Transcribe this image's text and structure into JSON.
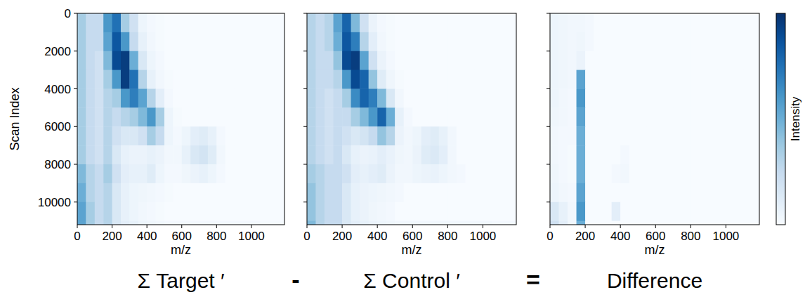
{
  "chart_data": [
    {
      "type": "heatmap",
      "title": "Σ Target ′",
      "x_label": "m/z",
      "y_label": "Scan Index",
      "xlim": [
        0,
        1190
      ],
      "ylim": [
        0,
        11200
      ],
      "xticks": [
        0,
        200,
        400,
        600,
        800,
        1000
      ],
      "yticks": [
        0,
        2000,
        4000,
        6000,
        8000,
        10000
      ],
      "x_bins": [
        0,
        50,
        100,
        150,
        200,
        250,
        300,
        350,
        400,
        450,
        500,
        550,
        600,
        650,
        700,
        750,
        800,
        850,
        900,
        950,
        1000,
        1050,
        1100,
        1150,
        1190
      ],
      "y_bins": [
        0,
        1000,
        2000,
        3000,
        4000,
        5000,
        6000,
        7000,
        8000,
        9000,
        10000,
        11000,
        11200
      ],
      "cells": [
        [
          0.35,
          0.25,
          0.25,
          0.6,
          0.75,
          0.35,
          0.2,
          0.05,
          0.02,
          0.01,
          0,
          0,
          0,
          0,
          0,
          0,
          0,
          0,
          0,
          0,
          0,
          0,
          0,
          0
        ],
        [
          0.35,
          0.25,
          0.25,
          0.55,
          0.85,
          0.6,
          0.25,
          0.08,
          0.03,
          0.01,
          0,
          0,
          0,
          0,
          0,
          0,
          0,
          0,
          0,
          0,
          0,
          0,
          0,
          0
        ],
        [
          0.35,
          0.25,
          0.2,
          0.45,
          0.9,
          0.95,
          0.5,
          0.15,
          0.05,
          0.02,
          0,
          0,
          0,
          0,
          0,
          0,
          0,
          0,
          0,
          0,
          0,
          0,
          0,
          0
        ],
        [
          0.35,
          0.25,
          0.2,
          0.35,
          0.6,
          0.95,
          0.75,
          0.3,
          0.08,
          0.03,
          0.01,
          0,
          0,
          0,
          0,
          0,
          0,
          0,
          0,
          0,
          0,
          0,
          0,
          0
        ],
        [
          0.35,
          0.25,
          0.2,
          0.3,
          0.35,
          0.6,
          0.7,
          0.55,
          0.3,
          0.1,
          0.02,
          0,
          0,
          0,
          0,
          0,
          0,
          0,
          0,
          0,
          0,
          0,
          0,
          0
        ],
        [
          0.35,
          0.25,
          0.2,
          0.3,
          0.25,
          0.3,
          0.35,
          0.45,
          0.6,
          0.35,
          0.05,
          0.01,
          0,
          0,
          0,
          0,
          0,
          0,
          0,
          0,
          0,
          0,
          0,
          0
        ],
        [
          0.35,
          0.25,
          0.2,
          0.3,
          0.2,
          0.15,
          0.15,
          0.2,
          0.35,
          0.25,
          0.05,
          0.02,
          0.05,
          0.1,
          0.12,
          0.08,
          0.02,
          0,
          0,
          0,
          0,
          0,
          0,
          0
        ],
        [
          0.35,
          0.25,
          0.2,
          0.3,
          0.15,
          0.08,
          0.06,
          0.06,
          0.08,
          0.06,
          0.03,
          0.03,
          0.08,
          0.15,
          0.18,
          0.12,
          0.03,
          0,
          0,
          0,
          0,
          0,
          0,
          0
        ],
        [
          0.45,
          0.3,
          0.25,
          0.35,
          0.2,
          0.1,
          0.08,
          0.08,
          0.12,
          0.05,
          0.02,
          0.02,
          0.04,
          0.06,
          0.08,
          0.05,
          0.02,
          0,
          0,
          0,
          0,
          0,
          0,
          0
        ],
        [
          0.5,
          0.3,
          0.25,
          0.3,
          0.15,
          0.08,
          0.05,
          0.04,
          0.03,
          0.02,
          0.01,
          0,
          0,
          0,
          0,
          0,
          0,
          0,
          0,
          0,
          0,
          0,
          0,
          0
        ],
        [
          0.55,
          0.35,
          0.25,
          0.3,
          0.15,
          0.08,
          0.05,
          0.03,
          0.02,
          0.01,
          0,
          0,
          0,
          0,
          0,
          0,
          0,
          0,
          0,
          0,
          0,
          0,
          0,
          0
        ],
        [
          0.55,
          0.35,
          0.25,
          0.3,
          0.15,
          0.1,
          0.08,
          0.05,
          0.04,
          0.03,
          0.02,
          0.02,
          0.02,
          0.02,
          0.02,
          0.02,
          0.02,
          0.02,
          0.02,
          0.02,
          0.02,
          0.01,
          0.01,
          0.01
        ]
      ]
    },
    {
      "type": "heatmap",
      "title": "Σ Control ′",
      "x_label": "m/z",
      "tick_labels": "x",
      "xlim": [
        0,
        1190
      ],
      "ylim": [
        0,
        11200
      ],
      "xticks": [
        0,
        200,
        400,
        600,
        800,
        1000
      ],
      "yticks": [
        0,
        2000,
        4000,
        6000,
        8000,
        10000
      ],
      "x_bins": [
        0,
        50,
        100,
        150,
        200,
        250,
        300,
        350,
        400,
        450,
        500,
        550,
        600,
        650,
        700,
        750,
        800,
        850,
        900,
        950,
        1000,
        1050,
        1100,
        1150,
        1190
      ],
      "y_bins": [
        0,
        1000,
        2000,
        3000,
        4000,
        5000,
        6000,
        7000,
        8000,
        9000,
        10000,
        11000,
        11200
      ],
      "cells": [
        [
          0.3,
          0.25,
          0.3,
          0.55,
          0.8,
          0.45,
          0.2,
          0.06,
          0.02,
          0.01,
          0,
          0,
          0,
          0,
          0,
          0,
          0,
          0,
          0,
          0,
          0,
          0,
          0,
          0
        ],
        [
          0.3,
          0.25,
          0.3,
          0.5,
          0.85,
          0.7,
          0.3,
          0.1,
          0.03,
          0.01,
          0,
          0,
          0,
          0,
          0,
          0,
          0,
          0,
          0,
          0,
          0,
          0,
          0,
          0
        ],
        [
          0.3,
          0.25,
          0.25,
          0.4,
          0.9,
          0.95,
          0.55,
          0.2,
          0.06,
          0.02,
          0,
          0,
          0,
          0,
          0,
          0,
          0,
          0,
          0,
          0,
          0,
          0,
          0,
          0
        ],
        [
          0.3,
          0.25,
          0.25,
          0.3,
          0.6,
          0.9,
          0.8,
          0.4,
          0.12,
          0.04,
          0.01,
          0,
          0,
          0,
          0,
          0,
          0,
          0,
          0,
          0,
          0,
          0,
          0,
          0
        ],
        [
          0.3,
          0.25,
          0.2,
          0.25,
          0.35,
          0.65,
          0.8,
          0.7,
          0.45,
          0.15,
          0.03,
          0,
          0,
          0,
          0,
          0,
          0,
          0,
          0,
          0,
          0,
          0,
          0,
          0
        ],
        [
          0.3,
          0.25,
          0.2,
          0.25,
          0.25,
          0.35,
          0.45,
          0.6,
          0.8,
          0.5,
          0.08,
          0.02,
          0,
          0,
          0,
          0,
          0,
          0,
          0,
          0,
          0,
          0,
          0,
          0
        ],
        [
          0.3,
          0.25,
          0.2,
          0.25,
          0.2,
          0.15,
          0.18,
          0.25,
          0.4,
          0.3,
          0.06,
          0.03,
          0.05,
          0.1,
          0.12,
          0.08,
          0.03,
          0,
          0,
          0,
          0,
          0,
          0,
          0
        ],
        [
          0.3,
          0.25,
          0.2,
          0.25,
          0.15,
          0.08,
          0.06,
          0.07,
          0.1,
          0.07,
          0.04,
          0.03,
          0.06,
          0.12,
          0.14,
          0.1,
          0.03,
          0,
          0,
          0,
          0,
          0,
          0,
          0
        ],
        [
          0.35,
          0.3,
          0.25,
          0.25,
          0.2,
          0.1,
          0.08,
          0.1,
          0.12,
          0.06,
          0.03,
          0.03,
          0.05,
          0.06,
          0.07,
          0.05,
          0.03,
          0.02,
          0,
          0,
          0,
          0,
          0,
          0
        ],
        [
          0.4,
          0.3,
          0.25,
          0.25,
          0.15,
          0.08,
          0.06,
          0.05,
          0.04,
          0.03,
          0.02,
          0,
          0,
          0,
          0,
          0,
          0,
          0,
          0,
          0,
          0,
          0,
          0,
          0
        ],
        [
          0.4,
          0.3,
          0.25,
          0.25,
          0.15,
          0.08,
          0.06,
          0.04,
          0.03,
          0.02,
          0,
          0,
          0,
          0,
          0,
          0,
          0,
          0,
          0,
          0,
          0,
          0,
          0,
          0
        ],
        [
          0.45,
          0.3,
          0.25,
          0.25,
          0.15,
          0.1,
          0.08,
          0.06,
          0.05,
          0.04,
          0.03,
          0.03,
          0.03,
          0.03,
          0.03,
          0.03,
          0.03,
          0.03,
          0.03,
          0.03,
          0.03,
          0.02,
          0.02,
          0.02
        ]
      ]
    },
    {
      "type": "heatmap",
      "title": "Difference",
      "x_label": "m/z",
      "tick_labels": "x",
      "xlim": [
        0,
        1190
      ],
      "ylim": [
        0,
        11200
      ],
      "xticks": [
        0,
        200,
        400,
        600,
        800,
        1000
      ],
      "yticks": [
        0,
        2000,
        4000,
        6000,
        8000,
        10000
      ],
      "x_bins": [
        0,
        50,
        100,
        150,
        200,
        250,
        300,
        350,
        400,
        450,
        500,
        550,
        600,
        650,
        700,
        750,
        800,
        850,
        900,
        950,
        1000,
        1050,
        1100,
        1150,
        1190
      ],
      "y_bins": [
        0,
        1000,
        2000,
        3000,
        4000,
        5000,
        6000,
        7000,
        8000,
        9000,
        10000,
        11000,
        11200
      ],
      "cells": [
        [
          0.05,
          0.04,
          0.03,
          0.03,
          0.02,
          0,
          0,
          0,
          0,
          0,
          0,
          0,
          0,
          0,
          0,
          0,
          0,
          0,
          0,
          0,
          0,
          0,
          0,
          0
        ],
        [
          0.05,
          0.04,
          0.03,
          0.04,
          0.02,
          0,
          0,
          0,
          0,
          0,
          0,
          0,
          0,
          0,
          0,
          0,
          0,
          0,
          0,
          0,
          0,
          0,
          0,
          0
        ],
        [
          0.05,
          0.04,
          0.03,
          0.06,
          0,
          0,
          0,
          0,
          0,
          0,
          0,
          0,
          0,
          0,
          0,
          0,
          0,
          0,
          0,
          0,
          0,
          0,
          0,
          0
        ],
        [
          0.05,
          0.04,
          0.03,
          0.55,
          0,
          0,
          0,
          0,
          0,
          0,
          0,
          0,
          0,
          0,
          0,
          0,
          0,
          0,
          0,
          0,
          0,
          0,
          0,
          0
        ],
        [
          0.05,
          0.03,
          0.02,
          0.6,
          0,
          0,
          0,
          0,
          0,
          0,
          0,
          0,
          0,
          0,
          0,
          0,
          0,
          0,
          0,
          0,
          0,
          0,
          0,
          0
        ],
        [
          0.04,
          0.03,
          0.02,
          0.55,
          0,
          0,
          0,
          0,
          0,
          0,
          0,
          0,
          0,
          0,
          0,
          0,
          0,
          0,
          0,
          0,
          0,
          0,
          0,
          0
        ],
        [
          0.03,
          0.02,
          0.02,
          0.5,
          0,
          0,
          0,
          0,
          0,
          0,
          0,
          0,
          0,
          0,
          0,
          0,
          0,
          0,
          0,
          0,
          0,
          0,
          0,
          0
        ],
        [
          0.03,
          0.02,
          0.01,
          0.5,
          0,
          0,
          0,
          0,
          0.02,
          0,
          0,
          0,
          0,
          0,
          0,
          0,
          0,
          0,
          0,
          0,
          0,
          0,
          0,
          0
        ],
        [
          0.04,
          0.02,
          0.01,
          0.5,
          0,
          0,
          0,
          0.02,
          0.03,
          0,
          0,
          0,
          0,
          0,
          0,
          0,
          0,
          0,
          0,
          0,
          0,
          0,
          0,
          0
        ],
        [
          0.05,
          0.03,
          0.02,
          0.55,
          0,
          0,
          0,
          0,
          0,
          0,
          0,
          0,
          0,
          0,
          0,
          0,
          0,
          0,
          0,
          0,
          0,
          0,
          0,
          0
        ],
        [
          0.15,
          0.08,
          0.03,
          0.6,
          0,
          0,
          0,
          0.1,
          0,
          0,
          0,
          0,
          0,
          0,
          0,
          0,
          0,
          0,
          0,
          0,
          0,
          0,
          0,
          0
        ],
        [
          0.2,
          0.1,
          0.03,
          0.5,
          0,
          0,
          0,
          0,
          0,
          0,
          0,
          0,
          0,
          0,
          0,
          0,
          0,
          0,
          0,
          0,
          0,
          0,
          0,
          0
        ]
      ]
    }
  ],
  "colorbar": {
    "label": "Intensity",
    "range": [
      0,
      1
    ]
  },
  "operators": [
    "-",
    "="
  ]
}
